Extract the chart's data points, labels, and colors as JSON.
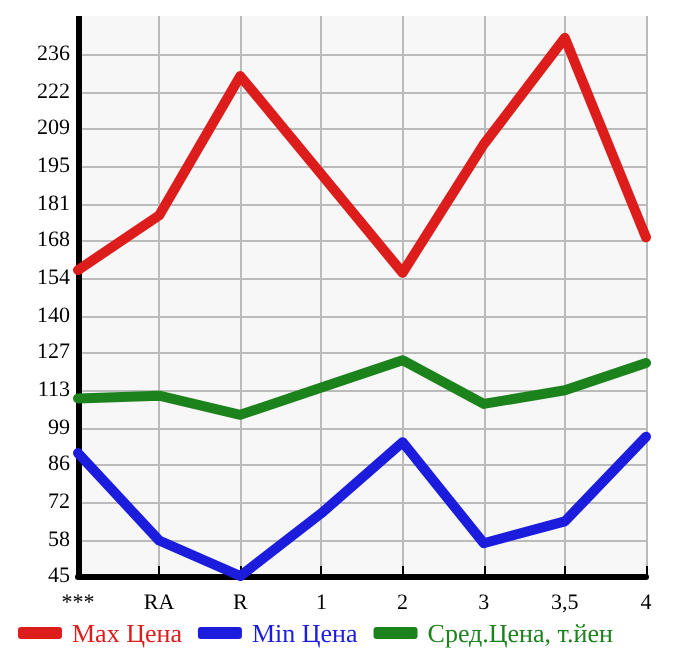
{
  "chart_data": {
    "type": "line",
    "categories": [
      "***",
      "RA",
      "R",
      "1",
      "2",
      "3",
      "3,5",
      "4"
    ],
    "series": [
      {
        "name": "Max Цена",
        "color": "#dd1c1c",
        "values": [
          157,
          177,
          228,
          192,
          156,
          203,
          242,
          169
        ]
      },
      {
        "name": "Min Цена",
        "color": "#1c1cdd",
        "values": [
          90,
          58,
          45,
          68,
          94,
          57,
          65,
          96
        ]
      },
      {
        "name": "Сред.Цена, т.йен",
        "color": "#1c821c",
        "values": [
          110,
          111,
          104,
          114,
          124,
          108,
          113,
          123
        ]
      }
    ],
    "ylim": [
      45,
      250
    ],
    "yticks": [
      45,
      58,
      72,
      86,
      99,
      113,
      127,
      140,
      154,
      168,
      181,
      195,
      209,
      222,
      236
    ],
    "grid": true,
    "legend": "bottom",
    "marker": "none",
    "line_style": "solid"
  }
}
